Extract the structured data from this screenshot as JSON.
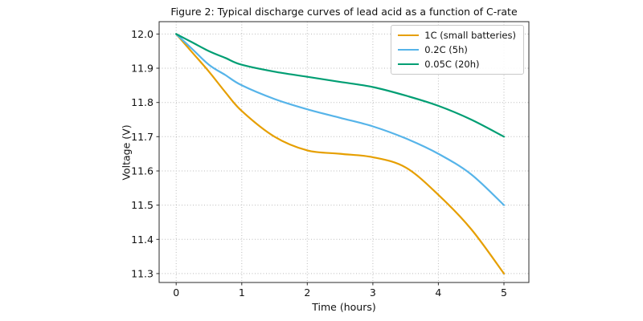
{
  "chart_data": {
    "type": "line",
    "title": "Figure 2: Typical discharge curves of lead acid as a function of C-rate",
    "xlabel": "Time (hours)",
    "ylabel": "Voltage (V)",
    "xlim": [
      -0.26,
      5.38
    ],
    "ylim": [
      11.274,
      12.036
    ],
    "x_ticks": [
      0,
      1,
      2,
      3,
      4,
      5
    ],
    "y_ticks": [
      11.3,
      11.4,
      11.5,
      11.6,
      11.7,
      11.8,
      11.9,
      12.0
    ],
    "grid": "dotted",
    "legend_position": "upper right",
    "x": [
      0,
      0.25,
      0.5,
      0.75,
      1,
      1.5,
      2,
      2.5,
      3,
      3.5,
      4,
      4.5,
      5
    ],
    "series": [
      {
        "name": "1C (small batteries)",
        "color": "#E69F00",
        "values": [
          12.0,
          11.945,
          11.89,
          11.83,
          11.775,
          11.7,
          11.66,
          11.65,
          11.64,
          11.61,
          11.53,
          11.43,
          11.3
        ]
      },
      {
        "name": "0.2C (5h)",
        "color": "#56B4E9",
        "values": [
          12.0,
          11.955,
          11.91,
          11.88,
          11.85,
          11.81,
          11.78,
          11.755,
          11.73,
          11.695,
          11.65,
          11.59,
          11.5
        ]
      },
      {
        "name": "0.05C (20h)",
        "color": "#009E73",
        "values": [
          12.0,
          11.975,
          11.95,
          11.93,
          11.91,
          11.89,
          11.875,
          11.86,
          11.845,
          11.82,
          11.79,
          11.75,
          11.7
        ]
      }
    ]
  },
  "colors": {
    "background": "#ffffff",
    "grid": "#bbbbbb",
    "axis": "#2b2b2b",
    "text": "#111111"
  }
}
